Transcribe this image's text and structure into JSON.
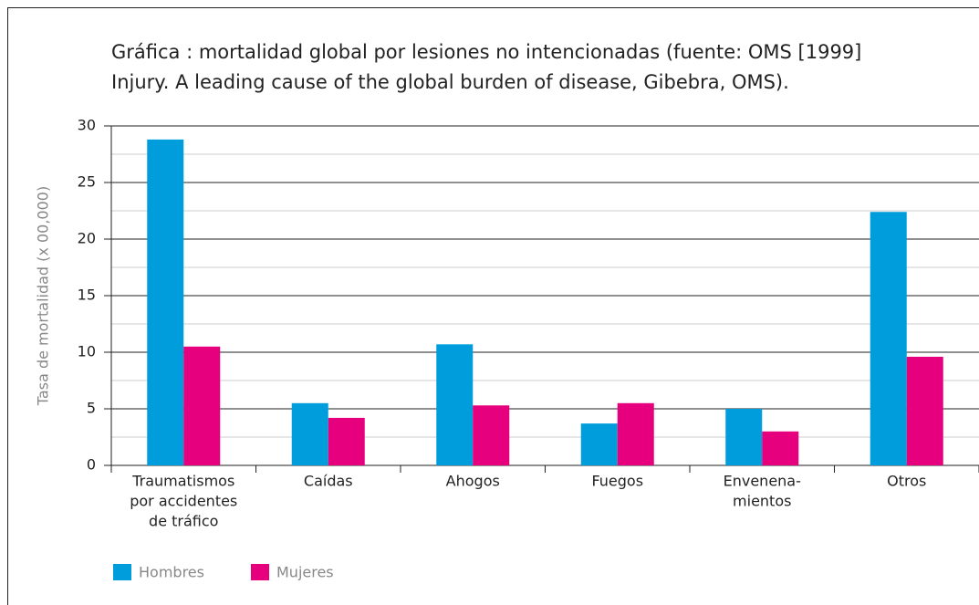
{
  "chart_data": {
    "type": "bar",
    "title": [
      "Gráfica : mortalidad global por lesiones no intencionadas (fuente: OMS [1999]",
      "Injury. A leading cause of the global burden of disease, Gibebra, OMS)."
    ],
    "y_label": "Tasa de mortalidad (x 00,000)",
    "categories": [
      [
        "Traumatismos",
        "por accidentes",
        "de tráfico"
      ],
      [
        "Caídas"
      ],
      [
        "Ahogos"
      ],
      [
        "Fuegos"
      ],
      [
        "Envenena-",
        "mientos"
      ],
      [
        "Otros"
      ]
    ],
    "series": [
      {
        "name": "Hombres",
        "color": "#009ddd",
        "values": [
          28.8,
          5.5,
          10.7,
          3.7,
          5.0,
          22.4
        ]
      },
      {
        "name": "Mujeres",
        "color": "#e6007e",
        "values": [
          10.5,
          4.2,
          5.3,
          5.5,
          3.0,
          9.6
        ]
      }
    ],
    "ylim": [
      0,
      30
    ],
    "yticks": [
      0,
      5,
      10,
      15,
      20,
      25,
      30
    ],
    "grid": true,
    "minor_grid": true,
    "legend": "bottom-left"
  }
}
